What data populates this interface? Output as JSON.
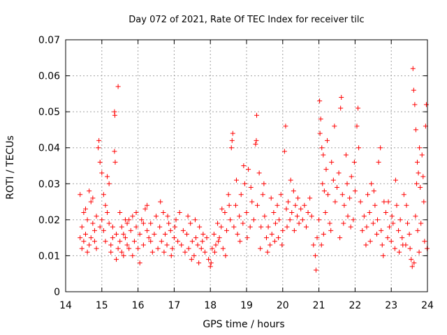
{
  "chart_data": {
    "type": "scatter",
    "title": "Day 072 of 2021, Rate Of TEC Index for receiver tilc",
    "xlabel": "GPS time / hours",
    "ylabel": "ROTI / TECUs",
    "xlim": [
      14,
      24
    ],
    "ylim": [
      0,
      0.07
    ],
    "x_ticks": [
      "14",
      "15",
      "16",
      "17",
      "18",
      "19",
      "20",
      "21",
      "22",
      "23",
      "24"
    ],
    "y_ticks": [
      "0",
      "0.01",
      "0.02",
      "0.03",
      "0.04",
      "0.05",
      "0.06",
      "0.07"
    ],
    "grid": true,
    "legend": "none",
    "marker": "plus",
    "color": "#ff0000",
    "points": [
      [
        14.4,
        0.015
      ],
      [
        14.45,
        0.018
      ],
      [
        14.5,
        0.022
      ],
      [
        14.55,
        0.016
      ],
      [
        14.6,
        0.02
      ],
      [
        14.65,
        0.013
      ],
      [
        14.7,
        0.025
      ],
      [
        14.75,
        0.019
      ],
      [
        14.8,
        0.017
      ],
      [
        14.85,
        0.021
      ],
      [
        14.4,
        0.027
      ],
      [
        14.45,
        0.012
      ],
      [
        14.5,
        0.014
      ],
      [
        14.55,
        0.023
      ],
      [
        14.6,
        0.011
      ],
      [
        14.65,
        0.028
      ],
      [
        14.7,
        0.015
      ],
      [
        14.75,
        0.026
      ],
      [
        14.8,
        0.014
      ],
      [
        14.85,
        0.012
      ],
      [
        14.9,
        0.04
      ],
      [
        14.92,
        0.042
      ],
      [
        14.95,
        0.036
      ],
      [
        15.0,
        0.02
      ],
      [
        15.05,
        0.017
      ],
      [
        15.1,
        0.024
      ],
      [
        15.15,
        0.032
      ],
      [
        15.2,
        0.019
      ],
      [
        15.25,
        0.013
      ],
      [
        15.3,
        0.015
      ],
      [
        14.95,
        0.018
      ],
      [
        15.0,
        0.033
      ],
      [
        15.05,
        0.027
      ],
      [
        15.1,
        0.014
      ],
      [
        15.15,
        0.022
      ],
      [
        15.2,
        0.03
      ],
      [
        15.25,
        0.011
      ],
      [
        15.3,
        0.018
      ],
      [
        15.35,
        0.039
      ],
      [
        15.37,
        0.036
      ],
      [
        15.35,
        0.05
      ],
      [
        15.36,
        0.049
      ],
      [
        15.45,
        0.057
      ],
      [
        15.4,
        0.016
      ],
      [
        15.45,
        0.012
      ],
      [
        15.5,
        0.014
      ],
      [
        15.55,
        0.018
      ],
      [
        15.6,
        0.01
      ],
      [
        15.65,
        0.02
      ],
      [
        15.7,
        0.013
      ],
      [
        15.4,
        0.009
      ],
      [
        15.5,
        0.022
      ],
      [
        15.55,
        0.011
      ],
      [
        15.6,
        0.016
      ],
      [
        15.65,
        0.015
      ],
      [
        15.7,
        0.019
      ],
      [
        15.75,
        0.012
      ],
      [
        15.8,
        0.017
      ],
      [
        15.85,
        0.021
      ],
      [
        15.9,
        0.014
      ],
      [
        15.95,
        0.018
      ],
      [
        16.0,
        0.012
      ],
      [
        16.05,
        0.016
      ],
      [
        16.1,
        0.02
      ],
      [
        16.15,
        0.013
      ],
      [
        16.2,
        0.023
      ],
      [
        16.25,
        0.017
      ],
      [
        16.3,
        0.015
      ],
      [
        16.35,
        0.019
      ],
      [
        16.4,
        0.011
      ],
      [
        15.75,
        0.02
      ],
      [
        15.85,
        0.01
      ],
      [
        15.95,
        0.022
      ],
      [
        16.05,
        0.008
      ],
      [
        16.15,
        0.019
      ],
      [
        16.25,
        0.024
      ],
      [
        16.35,
        0.014
      ],
      [
        16.45,
        0.016
      ],
      [
        16.5,
        0.021
      ],
      [
        16.55,
        0.012
      ],
      [
        16.6,
        0.018
      ],
      [
        16.65,
        0.014
      ],
      [
        16.7,
        0.022
      ],
      [
        16.75,
        0.016
      ],
      [
        16.8,
        0.013
      ],
      [
        16.85,
        0.019
      ],
      [
        16.9,
        0.017
      ],
      [
        16.95,
        0.012
      ],
      [
        17.0,
        0.015
      ],
      [
        17.05,
        0.02
      ],
      [
        16.62,
        0.025
      ],
      [
        16.72,
        0.011
      ],
      [
        16.82,
        0.021
      ],
      [
        16.92,
        0.01
      ],
      [
        17.02,
        0.018
      ],
      [
        17.1,
        0.014
      ],
      [
        17.15,
        0.022
      ],
      [
        17.2,
        0.013
      ],
      [
        17.25,
        0.017
      ],
      [
        17.3,
        0.011
      ],
      [
        17.35,
        0.016
      ],
      [
        17.4,
        0.012
      ],
      [
        17.45,
        0.019
      ],
      [
        17.5,
        0.014
      ],
      [
        17.55,
        0.01
      ],
      [
        17.6,
        0.015
      ],
      [
        17.65,
        0.013
      ],
      [
        17.7,
        0.018
      ],
      [
        17.75,
        0.012
      ],
      [
        17.8,
        0.016
      ],
      [
        17.38,
        0.021
      ],
      [
        17.48,
        0.009
      ],
      [
        17.58,
        0.02
      ],
      [
        17.68,
        0.008
      ],
      [
        17.78,
        0.014
      ],
      [
        17.85,
        0.011
      ],
      [
        17.9,
        0.015
      ],
      [
        17.95,
        0.009
      ],
      [
        18.0,
        0.007
      ],
      [
        18.05,
        0.012
      ],
      [
        18.1,
        0.016
      ],
      [
        18.15,
        0.013
      ],
      [
        18.2,
        0.019
      ],
      [
        18.25,
        0.015
      ],
      [
        18.3,
        0.018
      ],
      [
        18.35,
        0.012
      ],
      [
        18.4,
        0.022
      ],
      [
        18.45,
        0.017
      ],
      [
        18.5,
        0.027
      ],
      [
        18.55,
        0.02
      ],
      [
        18.02,
        0.008
      ],
      [
        18.12,
        0.011
      ],
      [
        18.22,
        0.014
      ],
      [
        18.32,
        0.023
      ],
      [
        18.42,
        0.01
      ],
      [
        18.52,
        0.024
      ],
      [
        18.58,
        0.04
      ],
      [
        18.6,
        0.042
      ],
      [
        18.62,
        0.044
      ],
      [
        18.65,
        0.018
      ],
      [
        18.7,
        0.024
      ],
      [
        18.75,
        0.016
      ],
      [
        18.8,
        0.021
      ],
      [
        18.85,
        0.027
      ],
      [
        18.9,
        0.019
      ],
      [
        18.95,
        0.03
      ],
      [
        19.0,
        0.022
      ],
      [
        19.05,
        0.034
      ],
      [
        19.1,
        0.018
      ],
      [
        19.15,
        0.025
      ],
      [
        18.72,
        0.031
      ],
      [
        18.82,
        0.014
      ],
      [
        18.92,
        0.035
      ],
      [
        19.02,
        0.015
      ],
      [
        19.12,
        0.029
      ],
      [
        19.2,
        0.02
      ],
      [
        19.25,
        0.041
      ],
      [
        19.27,
        0.042
      ],
      [
        19.28,
        0.049
      ],
      [
        19.3,
        0.024
      ],
      [
        19.35,
        0.033
      ],
      [
        19.4,
        0.018
      ],
      [
        19.45,
        0.027
      ],
      [
        19.5,
        0.021
      ],
      [
        19.55,
        0.015
      ],
      [
        19.6,
        0.018
      ],
      [
        19.65,
        0.013
      ],
      [
        19.7,
        0.016
      ],
      [
        19.75,
        0.022
      ],
      [
        19.8,
        0.019
      ],
      [
        19.38,
        0.012
      ],
      [
        19.48,
        0.03
      ],
      [
        19.58,
        0.011
      ],
      [
        19.68,
        0.026
      ],
      [
        19.78,
        0.014
      ],
      [
        19.85,
        0.024
      ],
      [
        19.9,
        0.02
      ],
      [
        19.95,
        0.027
      ],
      [
        20.0,
        0.017
      ],
      [
        20.05,
        0.039
      ],
      [
        20.08,
        0.046
      ],
      [
        20.1,
        0.023
      ],
      [
        20.15,
        0.025
      ],
      [
        20.2,
        0.02
      ],
      [
        20.25,
        0.022
      ],
      [
        20.3,
        0.028
      ],
      [
        20.35,
        0.024
      ],
      [
        20.4,
        0.021
      ],
      [
        20.45,
        0.019
      ],
      [
        20.5,
        0.023
      ],
      [
        19.88,
        0.015
      ],
      [
        19.98,
        0.013
      ],
      [
        20.12,
        0.018
      ],
      [
        20.22,
        0.031
      ],
      [
        20.32,
        0.017
      ],
      [
        20.42,
        0.026
      ],
      [
        20.55,
        0.02
      ],
      [
        20.6,
        0.024
      ],
      [
        20.65,
        0.018
      ],
      [
        20.7,
        0.022
      ],
      [
        20.75,
        0.026
      ],
      [
        20.8,
        0.021
      ],
      [
        20.85,
        0.013
      ],
      [
        20.9,
        0.01
      ],
      [
        20.95,
        0.015
      ],
      [
        20.92,
        0.006
      ],
      [
        21.0,
        0.02
      ],
      [
        21.02,
        0.053
      ],
      [
        21.05,
        0.048
      ],
      [
        21.08,
        0.04
      ],
      [
        21.1,
        0.03
      ],
      [
        21.12,
        0.038
      ],
      [
        21.15,
        0.028
      ],
      [
        21.18,
        0.022
      ],
      [
        21.2,
        0.034
      ],
      [
        21.25,
        0.027
      ],
      [
        21.3,
        0.019
      ],
      [
        21.35,
        0.036
      ],
      [
        21.4,
        0.031
      ],
      [
        21.45,
        0.025
      ],
      [
        21.03,
        0.044
      ],
      [
        21.07,
        0.013
      ],
      [
        21.13,
        0.016
      ],
      [
        21.23,
        0.042
      ],
      [
        21.33,
        0.017
      ],
      [
        21.43,
        0.046
      ],
      [
        21.5,
        0.029
      ],
      [
        21.55,
        0.033
      ],
      [
        21.6,
        0.051
      ],
      [
        21.62,
        0.054
      ],
      [
        21.65,
        0.027
      ],
      [
        21.7,
        0.024
      ],
      [
        21.75,
        0.038
      ],
      [
        21.8,
        0.021
      ],
      [
        21.85,
        0.026
      ],
      [
        21.9,
        0.032
      ],
      [
        21.95,
        0.02
      ],
      [
        22.0,
        0.028
      ],
      [
        22.05,
        0.046
      ],
      [
        22.08,
        0.051
      ],
      [
        21.58,
        0.015
      ],
      [
        21.68,
        0.019
      ],
      [
        21.78,
        0.03
      ],
      [
        21.88,
        0.018
      ],
      [
        21.98,
        0.036
      ],
      [
        22.1,
        0.04
      ],
      [
        22.15,
        0.025
      ],
      [
        22.2,
        0.017
      ],
      [
        22.25,
        0.021
      ],
      [
        22.3,
        0.013
      ],
      [
        22.35,
        0.027
      ],
      [
        22.4,
        0.022
      ],
      [
        22.45,
        0.03
      ],
      [
        22.5,
        0.019
      ],
      [
        22.55,
        0.024
      ],
      [
        22.6,
        0.016
      ],
      [
        22.65,
        0.036
      ],
      [
        22.7,
        0.04
      ],
      [
        22.75,
        0.013
      ],
      [
        22.8,
        0.025
      ],
      [
        22.32,
        0.018
      ],
      [
        22.42,
        0.014
      ],
      [
        22.52,
        0.028
      ],
      [
        22.62,
        0.02
      ],
      [
        22.72,
        0.017
      ],
      [
        22.78,
        0.01
      ],
      [
        22.85,
        0.022
      ],
      [
        22.9,
        0.015
      ],
      [
        22.95,
        0.018
      ],
      [
        23.0,
        0.014
      ],
      [
        23.05,
        0.019
      ],
      [
        23.1,
        0.012
      ],
      [
        23.15,
        0.024
      ],
      [
        23.2,
        0.017
      ],
      [
        23.25,
        0.02
      ],
      [
        23.3,
        0.015
      ],
      [
        23.35,
        0.027
      ],
      [
        23.4,
        0.013
      ],
      [
        23.45,
        0.019
      ],
      [
        23.5,
        0.016
      ],
      [
        22.92,
        0.025
      ],
      [
        23.02,
        0.021
      ],
      [
        23.12,
        0.031
      ],
      [
        23.22,
        0.011
      ],
      [
        23.32,
        0.013
      ],
      [
        23.42,
        0.024
      ],
      [
        23.52,
        0.012
      ],
      [
        23.55,
        0.009
      ],
      [
        23.58,
        0.007
      ],
      [
        23.6,
        0.062
      ],
      [
        23.62,
        0.056
      ],
      [
        23.65,
        0.052
      ],
      [
        23.68,
        0.045
      ],
      [
        23.7,
        0.03
      ],
      [
        23.72,
        0.036
      ],
      [
        23.75,
        0.033
      ],
      [
        23.78,
        0.04
      ],
      [
        23.8,
        0.029
      ],
      [
        23.85,
        0.038
      ],
      [
        23.9,
        0.025
      ],
      [
        23.63,
        0.008
      ],
      [
        23.67,
        0.021
      ],
      [
        23.73,
        0.017
      ],
      [
        23.77,
        0.011
      ],
      [
        23.82,
        0.019
      ],
      [
        23.88,
        0.032
      ],
      [
        23.92,
        0.014
      ],
      [
        23.95,
        0.046
      ],
      [
        23.97,
        0.052
      ],
      [
        23.99,
        0.012
      ]
    ]
  }
}
